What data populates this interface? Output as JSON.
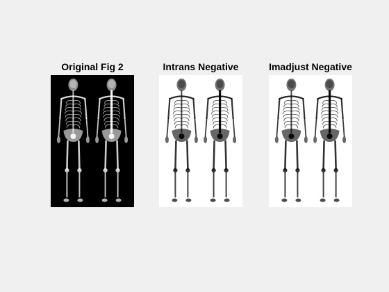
{
  "figure": {
    "background": "#f0f0f0",
    "panels": [
      {
        "title": "Original Fig 2",
        "style": "original",
        "bg": "#000000",
        "fg": "#ffffff"
      },
      {
        "title": "Intrans Negative",
        "style": "negative",
        "bg": "#ffffff",
        "fg": "#000000"
      },
      {
        "title": "Imadjust Negative",
        "style": "negative",
        "bg": "#ffffff",
        "fg": "#000000"
      }
    ]
  }
}
